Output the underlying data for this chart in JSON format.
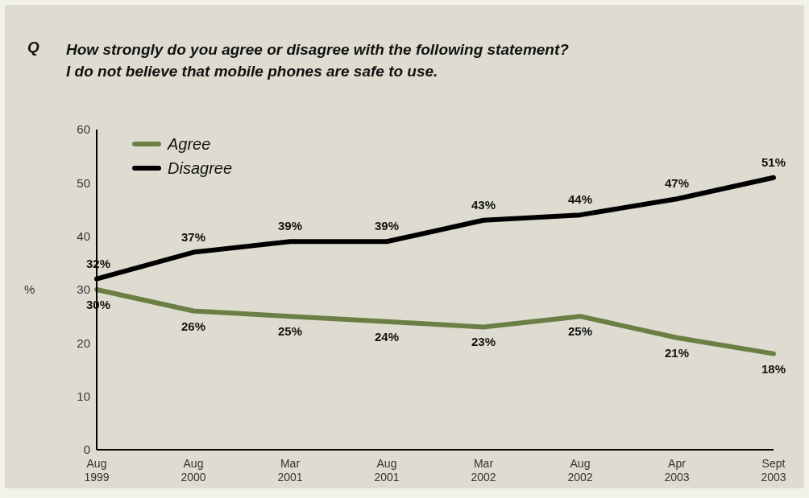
{
  "chart_data": {
    "type": "line",
    "title": "How strongly do you agree or disagree with the following statement?",
    "subtitle": "I do not believe that mobile phones are safe to use.",
    "annotations": [
      "Q"
    ],
    "ylabel": "%",
    "categories": [
      "Aug 1999",
      "Aug 2000",
      "Mar 2001",
      "Aug 2001",
      "Mar 2002",
      "Aug 2002",
      "Apr 2003",
      "Sept 2003"
    ],
    "series": [
      {
        "name": "Agree",
        "color": "#6b7f45",
        "values": [
          30,
          26,
          25,
          24,
          23,
          25,
          21,
          18
        ],
        "value_labels": [
          "30%",
          "26%",
          "25%",
          "24%",
          "23%",
          "25%",
          "21%",
          "18%"
        ]
      },
      {
        "name": "Disagree",
        "color": "#000000",
        "values": [
          32,
          37,
          39,
          39,
          43,
          44,
          47,
          51
        ],
        "value_labels": [
          "32%",
          "37%",
          "39%",
          "39%",
          "43%",
          "44%",
          "47%",
          "51%"
        ]
      }
    ],
    "ylim": [
      0,
      60
    ],
    "yticks": [
      0,
      10,
      20,
      30,
      40,
      50,
      60
    ],
    "grid": false,
    "legend": "top left",
    "marker": "none",
    "line_style": "solid"
  }
}
